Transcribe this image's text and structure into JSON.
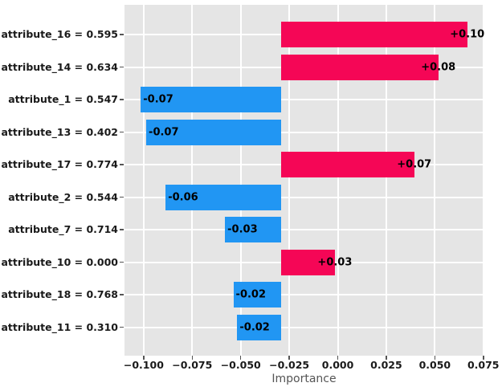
{
  "figure": {
    "panel_bg": "#e5e5e5",
    "grid_color": "#ffffff",
    "positive_color": "#f50656",
    "negative_color": "#2196f3",
    "tick_mark_color": "#555555",
    "tick_label_color": "#1a1a1a",
    "bar_label_color": "#000000",
    "axis_title_color": "#555555"
  },
  "chart_data": {
    "type": "bar",
    "orientation": "horizontal",
    "title": "",
    "xlabel": "Importance",
    "ylabel": "",
    "grid": true,
    "legend": false,
    "categories": [
      "attribute_16 = 0.595",
      "attribute_14 = 0.634",
      "attribute_1 = 0.547",
      "attribute_13 = 0.402",
      "attribute_17 = 0.774",
      "attribute_2 = 0.544",
      "attribute_7 = 0.714",
      "attribute_10 = 0.000",
      "attribute_18 = 0.768",
      "attribute_11 = 0.310"
    ],
    "values": [
      0.1,
      0.08,
      -0.07,
      -0.07,
      0.07,
      -0.06,
      -0.03,
      0.03,
      -0.02,
      -0.02
    ],
    "value_labels": [
      "+0.10",
      "+0.08",
      "-0.07",
      "-0.07",
      "+0.07",
      "-0.06",
      "-0.03",
      "+0.03",
      "-0.02",
      "-0.02"
    ],
    "bar_lengths": [
      0.0957,
      0.0808,
      -0.0725,
      -0.0697,
      0.0684,
      -0.0597,
      -0.0291,
      0.0275,
      -0.0248,
      -0.0228
    ],
    "bar_base": -0.029,
    "xlim": [
      -0.1099,
      0.0751
    ],
    "x_ticks": [
      -0.1,
      -0.075,
      -0.05,
      -0.025,
      0.0,
      0.025,
      0.05,
      0.075
    ],
    "x_tick_labels": [
      "−0.100",
      "−0.075",
      "−0.050",
      "−0.025",
      "0.000",
      "0.025",
      "0.050",
      "0.075"
    ]
  }
}
